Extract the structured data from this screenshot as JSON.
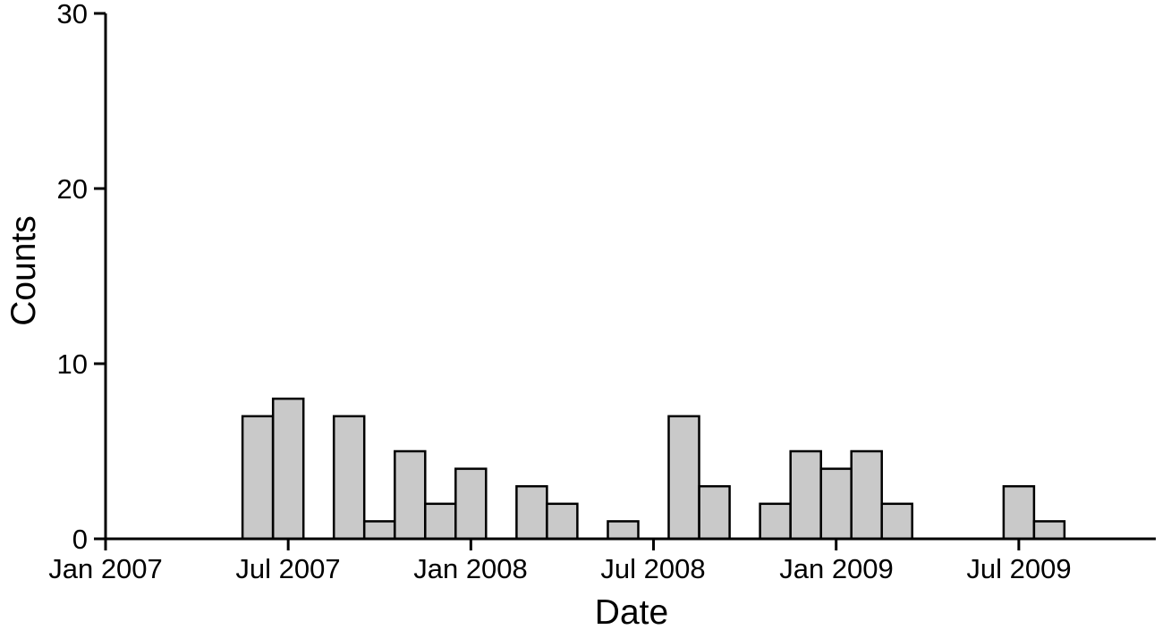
{
  "chart_data": {
    "type": "bar",
    "title": "",
    "xlabel": "Date",
    "ylabel": "Counts",
    "x_tick_labels": [
      "Jan 2007",
      "Jul 2007",
      "Jan 2008",
      "Jul 2008",
      "Jan 2009",
      "Jul 2009"
    ],
    "x_tick_month_indices": [
      0,
      6,
      12,
      18,
      24,
      30
    ],
    "y_tick_labels": [
      "0",
      "10",
      "20",
      "30"
    ],
    "y_ticks": [
      0,
      10,
      20,
      30
    ],
    "ylim": [
      0,
      30
    ],
    "xlim_months": [
      0,
      34.5
    ],
    "categories": [
      "Jan 2007",
      "Feb 2007",
      "Mar 2007",
      "Apr 2007",
      "May 2007",
      "Jun 2007",
      "Jul 2007",
      "Aug 2007",
      "Sep 2007",
      "Oct 2007",
      "Nov 2007",
      "Dec 2007",
      "Jan 2008",
      "Feb 2008",
      "Mar 2008",
      "Apr 2008",
      "May 2008",
      "Jun 2008",
      "Jul 2008",
      "Aug 2008",
      "Sep 2008",
      "Oct 2008",
      "Nov 2008",
      "Dec 2008",
      "Jan 2009",
      "Feb 2009",
      "Mar 2009",
      "Apr 2009",
      "May 2009",
      "Jun 2009",
      "Jul 2009",
      "Aug 2009",
      "Sep 2009",
      "Oct 2009",
      "Nov 2009"
    ],
    "values": [
      0,
      0,
      0,
      0,
      0,
      7,
      8,
      0,
      7,
      1,
      5,
      2,
      4,
      0,
      3,
      2,
      0,
      1,
      0,
      7,
      3,
      0,
      2,
      5,
      4,
      5,
      2,
      0,
      0,
      0,
      3,
      1,
      0,
      0,
      0
    ],
    "bar_fill": "#c9c9c9",
    "bar_stroke": "#000000",
    "axis_color": "#000000",
    "background": "#ffffff",
    "grid": false,
    "legend": false
  }
}
